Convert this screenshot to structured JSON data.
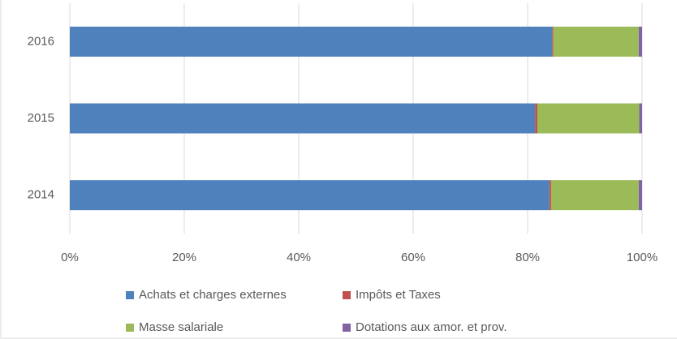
{
  "chart_data": {
    "type": "bar",
    "orientation": "horizontal",
    "stacked": true,
    "categories": [
      "2016",
      "2015",
      "2014"
    ],
    "series": [
      {
        "name": "Achats et charges externes",
        "color": "#4f81bd",
        "values": [
          84.3,
          81.3,
          83.8
        ]
      },
      {
        "name": "Impôts et Taxes",
        "color": "#c0504d",
        "values": [
          0.2,
          0.4,
          0.3
        ]
      },
      {
        "name": "Masse salariale",
        "color": "#9bbb59",
        "values": [
          14.9,
          17.8,
          15.3
        ]
      },
      {
        "name": "Dotations aux amor. et prov.",
        "color": "#8064a2",
        "values": [
          0.6,
          0.5,
          0.6
        ]
      }
    ],
    "xlim": [
      0,
      100
    ],
    "xticks": [
      {
        "value": 0,
        "label": "0%"
      },
      {
        "value": 20,
        "label": "20%"
      },
      {
        "value": 40,
        "label": "40%"
      },
      {
        "value": 60,
        "label": "60%"
      },
      {
        "value": 80,
        "label": "80%"
      },
      {
        "value": 100,
        "label": "100%"
      }
    ],
    "grid": true,
    "legend": "bottom"
  }
}
